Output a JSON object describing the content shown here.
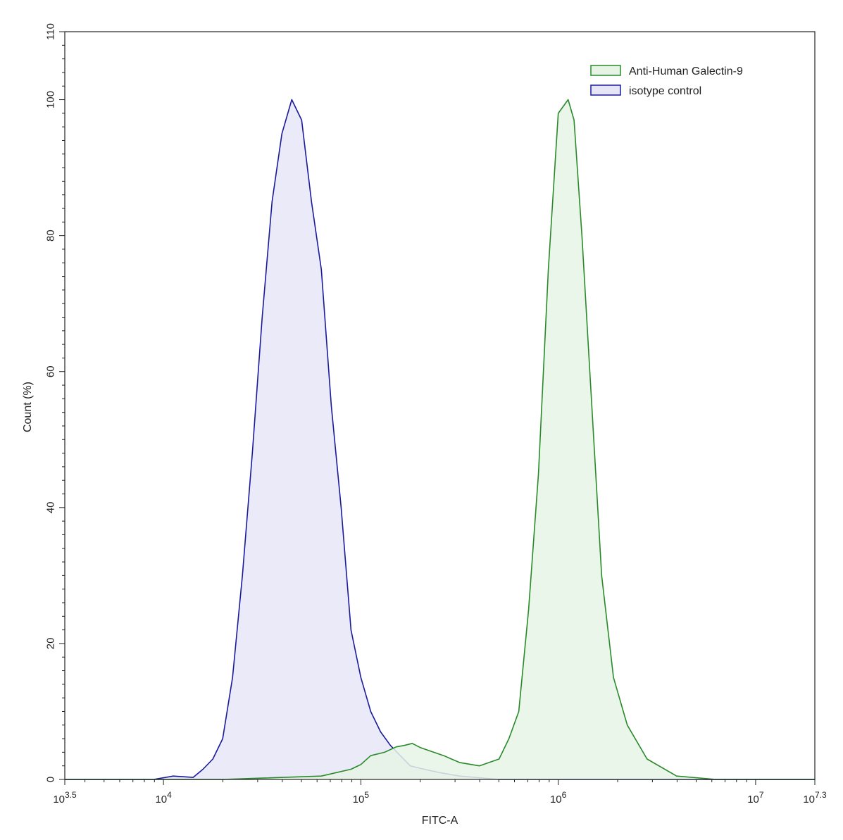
{
  "chart_data": {
    "type": "area",
    "xlabel": "FITC-A",
    "ylabel": "Count  (%)",
    "x_scale": "log10",
    "xlim_log10": [
      3.5,
      7.3
    ],
    "ylim": [
      0,
      110
    ],
    "x_ticks": [
      {
        "exp": 3.5,
        "base": "10",
        "sup": "3.5"
      },
      {
        "exp": 4,
        "base": "10",
        "sup": "4"
      },
      {
        "exp": 5,
        "base": "10",
        "sup": "5"
      },
      {
        "exp": 6,
        "base": "10",
        "sup": "6"
      },
      {
        "exp": 7,
        "base": "10",
        "sup": "7"
      },
      {
        "exp": 7.3,
        "base": "10",
        "sup": "7.3"
      }
    ],
    "y_ticks": [
      0,
      20,
      40,
      60,
      80,
      100,
      110
    ],
    "legend_position": "top-right",
    "series": [
      {
        "name": "Anti-Human Galectin-9",
        "color": "#2a8a2a",
        "fill": "#e6f4e6",
        "points_log10x": [
          [
            3.5,
            0
          ],
          [
            4.3,
            0
          ],
          [
            4.5,
            0.2
          ],
          [
            4.8,
            0.5
          ],
          [
            4.95,
            1.5
          ],
          [
            5.0,
            2.2
          ],
          [
            5.05,
            3.5
          ],
          [
            5.12,
            4
          ],
          [
            5.18,
            4.8
          ],
          [
            5.22,
            5
          ],
          [
            5.26,
            5.3
          ],
          [
            5.3,
            4.7
          ],
          [
            5.35,
            4.2
          ],
          [
            5.42,
            3.5
          ],
          [
            5.5,
            2.5
          ],
          [
            5.6,
            2
          ],
          [
            5.7,
            3
          ],
          [
            5.75,
            6
          ],
          [
            5.8,
            10
          ],
          [
            5.85,
            25
          ],
          [
            5.9,
            45
          ],
          [
            5.95,
            75
          ],
          [
            6.0,
            98
          ],
          [
            6.05,
            100
          ],
          [
            6.08,
            97
          ],
          [
            6.12,
            80
          ],
          [
            6.17,
            55
          ],
          [
            6.22,
            30
          ],
          [
            6.28,
            15
          ],
          [
            6.35,
            8
          ],
          [
            6.45,
            3
          ],
          [
            6.6,
            0.5
          ],
          [
            6.8,
            0
          ],
          [
            7.3,
            0
          ]
        ]
      },
      {
        "name": "isotype control",
        "color": "#1a1a9a",
        "fill": "#e6e6f8",
        "points_log10x": [
          [
            3.5,
            0
          ],
          [
            3.95,
            0
          ],
          [
            4.05,
            0.5
          ],
          [
            4.15,
            0.3
          ],
          [
            4.2,
            1.5
          ],
          [
            4.25,
            3
          ],
          [
            4.3,
            6
          ],
          [
            4.35,
            15
          ],
          [
            4.4,
            30
          ],
          [
            4.45,
            48
          ],
          [
            4.5,
            68
          ],
          [
            4.55,
            85
          ],
          [
            4.6,
            95
          ],
          [
            4.65,
            100
          ],
          [
            4.7,
            97
          ],
          [
            4.75,
            85
          ],
          [
            4.8,
            75
          ],
          [
            4.85,
            55
          ],
          [
            4.9,
            40
          ],
          [
            4.95,
            22
          ],
          [
            5.0,
            15
          ],
          [
            5.05,
            10
          ],
          [
            5.1,
            7
          ],
          [
            5.15,
            5
          ],
          [
            5.2,
            3.5
          ],
          [
            5.25,
            2
          ],
          [
            5.32,
            1.5
          ],
          [
            5.4,
            1
          ],
          [
            5.5,
            0.5
          ],
          [
            5.7,
            0
          ],
          [
            7.3,
            0
          ]
        ]
      }
    ]
  }
}
